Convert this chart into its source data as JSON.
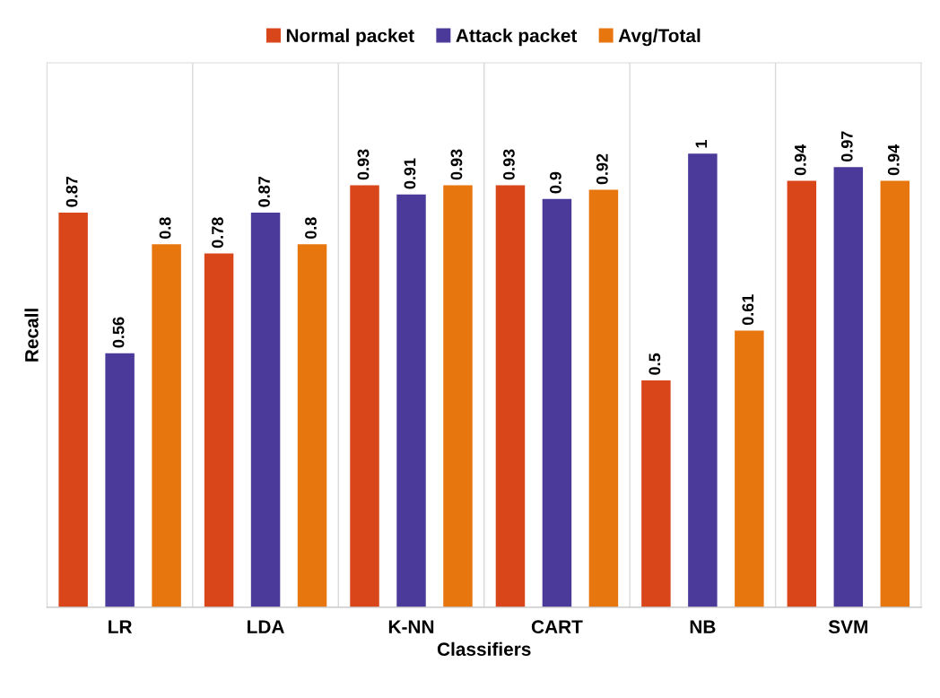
{
  "chart_data": {
    "type": "bar",
    "xlabel": "Classifiers",
    "ylabel": "Recall",
    "categories": [
      "LR",
      "LDA",
      "K-NN",
      "CART",
      "NB",
      "SVM"
    ],
    "series": [
      {
        "name": "Normal packet",
        "color": "#d9461a",
        "values": [
          0.87,
          0.78,
          0.93,
          0.93,
          0.5,
          0.94
        ]
      },
      {
        "name": "Attack packet",
        "color": "#4b3a9a",
        "values": [
          0.56,
          0.87,
          0.91,
          0.9,
          1,
          0.97
        ]
      },
      {
        "name": "Avg/Total",
        "color": "#e8760f",
        "values": [
          0.8,
          0.8,
          0.93,
          0.92,
          0.61,
          0.94
        ]
      }
    ],
    "ylim": [
      0,
      1.2
    ],
    "tick_labels": "x",
    "data_labels": true,
    "grid": "x",
    "legend": "top"
  }
}
